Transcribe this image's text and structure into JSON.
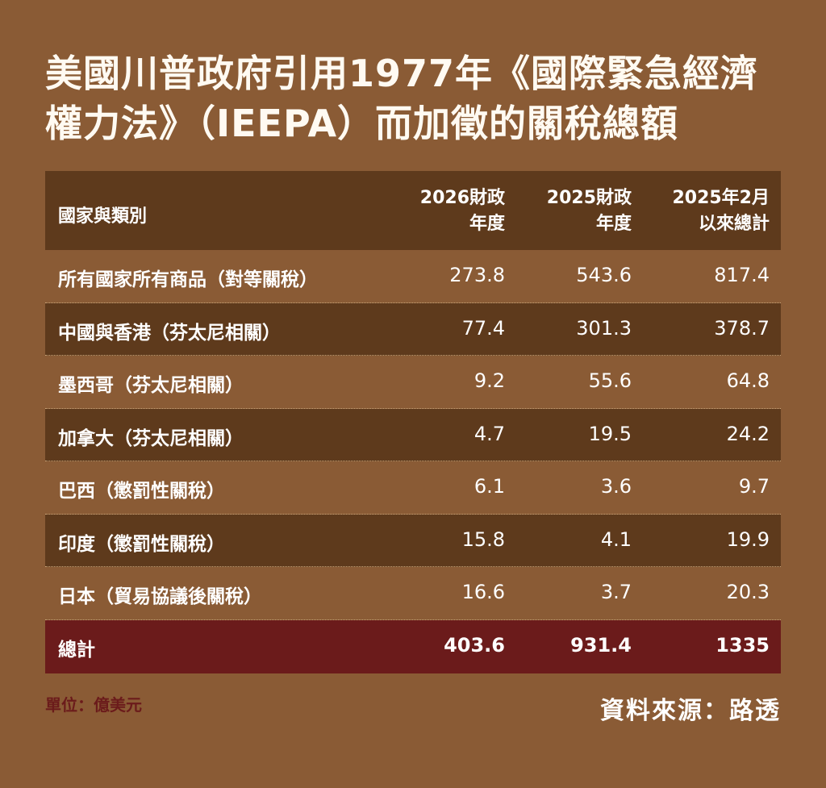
{
  "title": "美國川普政府引用1977年《國際緊急經濟權力法》（IEEPA）而加徵的關稅總額",
  "chart_data": {
    "type": "table",
    "columns": [
      {
        "line1": "國家與類別",
        "line2": ""
      },
      {
        "line1": "2026財政",
        "line2": "年度"
      },
      {
        "line1": "2025財政",
        "line2": "年度"
      },
      {
        "line1": "2025年2月",
        "line2": "以來總計"
      }
    ],
    "rows": [
      {
        "label": "所有國家所有商品（對等關稅）",
        "values": [
          "273.8",
          "543.6",
          "817.4"
        ]
      },
      {
        "label": "中國與香港（芬太尼相關）",
        "values": [
          "77.4",
          "301.3",
          "378.7"
        ]
      },
      {
        "label": "墨西哥（芬太尼相關）",
        "values": [
          "9.2",
          "55.6",
          "64.8"
        ]
      },
      {
        "label": "加拿大（芬太尼相關）",
        "values": [
          "4.7",
          "19.5",
          "24.2"
        ]
      },
      {
        "label": "巴西（懲罰性關稅）",
        "values": [
          "6.1",
          "3.6",
          "9.7"
        ]
      },
      {
        "label": "印度（懲罰性關稅）",
        "values": [
          "15.8",
          "4.1",
          "19.9"
        ]
      },
      {
        "label": "日本（貿易協議後關稅）",
        "values": [
          "16.6",
          "3.7",
          "20.3"
        ]
      }
    ],
    "total": {
      "label": "總計",
      "values": [
        "403.6",
        "931.4",
        "1335"
      ]
    },
    "unit": "單位：億美元",
    "source": "資料來源：路透"
  },
  "colors": {
    "background": "#8a5b35",
    "dark_band": "#5e3a1c",
    "total_band": "#6b1b1b",
    "unit_text": "#6b1b1b"
  }
}
